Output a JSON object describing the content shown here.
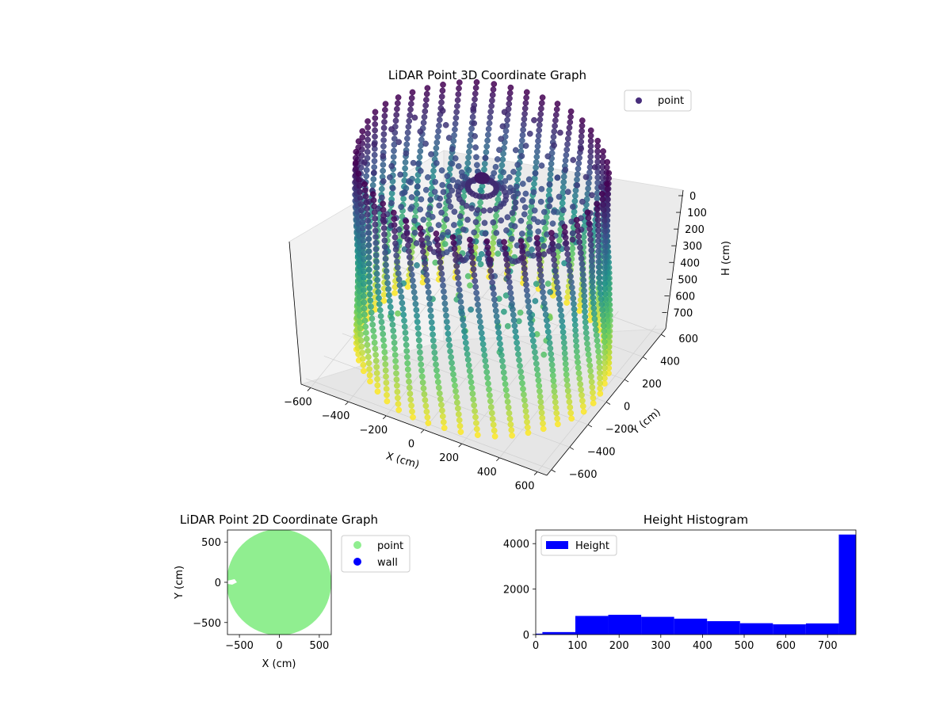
{
  "chart_data": [
    {
      "type": "scatter",
      "title": "LiDAR Point 3D Coordinate Graph",
      "xlabel": "X (cm)",
      "ylabel": "Y (cm)",
      "zlabel": "H (cm)",
      "xlim": [
        -650,
        650
      ],
      "ylim": [
        -650,
        650
      ],
      "zlim": [
        750,
        0
      ],
      "z_axis_inverted": true,
      "x_ticks": [
        -600,
        -400,
        -200,
        0,
        200,
        400,
        600
      ],
      "y_ticks": [
        -600,
        -400,
        -200,
        0,
        200,
        400,
        600
      ],
      "z_ticks": [
        0,
        100,
        200,
        300,
        400,
        500,
        600,
        700
      ],
      "colormap": "viridis",
      "colormap_stops": [
        "#440154",
        "#3b528b",
        "#21918c",
        "#5ec962",
        "#fde725"
      ],
      "legend": [
        {
          "label": "point",
          "color": "#472d7b"
        }
      ],
      "legend_position": "top-right",
      "grid": true,
      "structure": {
        "wall_radius_cm": 600,
        "wall_height_range_cm": [
          0,
          750
        ],
        "description_points": "cylindrical ring of vertical point strands plus interior points converging near center"
      }
    },
    {
      "type": "scatter",
      "title": "LiDAR Point 2D Coordinate Graph",
      "xlabel": "X (cm)",
      "ylabel": "Y (cm)",
      "xlim": [
        -650,
        650
      ],
      "ylim": [
        -650,
        650
      ],
      "x_ticks": [
        -500,
        0,
        500
      ],
      "y_ticks": [
        -500,
        0,
        500
      ],
      "series": [
        {
          "name": "point",
          "color": "#90ee90"
        },
        {
          "name": "wall",
          "color": "#0000ff"
        }
      ],
      "legend_position": "outside-right"
    },
    {
      "type": "bar",
      "title": "Height Histogram",
      "xlim": [
        0,
        768
      ],
      "ylim": [
        0,
        4600
      ],
      "x_ticks": [
        0,
        100,
        200,
        300,
        400,
        500,
        600,
        700
      ],
      "y_ticks": [
        0,
        2000,
        4000
      ],
      "bin_edges": [
        0,
        16,
        95,
        174,
        253,
        332,
        411,
        490,
        569,
        648,
        727,
        768
      ],
      "values": [
        40,
        110,
        820,
        870,
        780,
        700,
        590,
        500,
        450,
        490,
        4400
      ],
      "series": [
        {
          "name": "Height",
          "color": "#0000ff"
        }
      ],
      "legend_position": "top-left"
    }
  ]
}
